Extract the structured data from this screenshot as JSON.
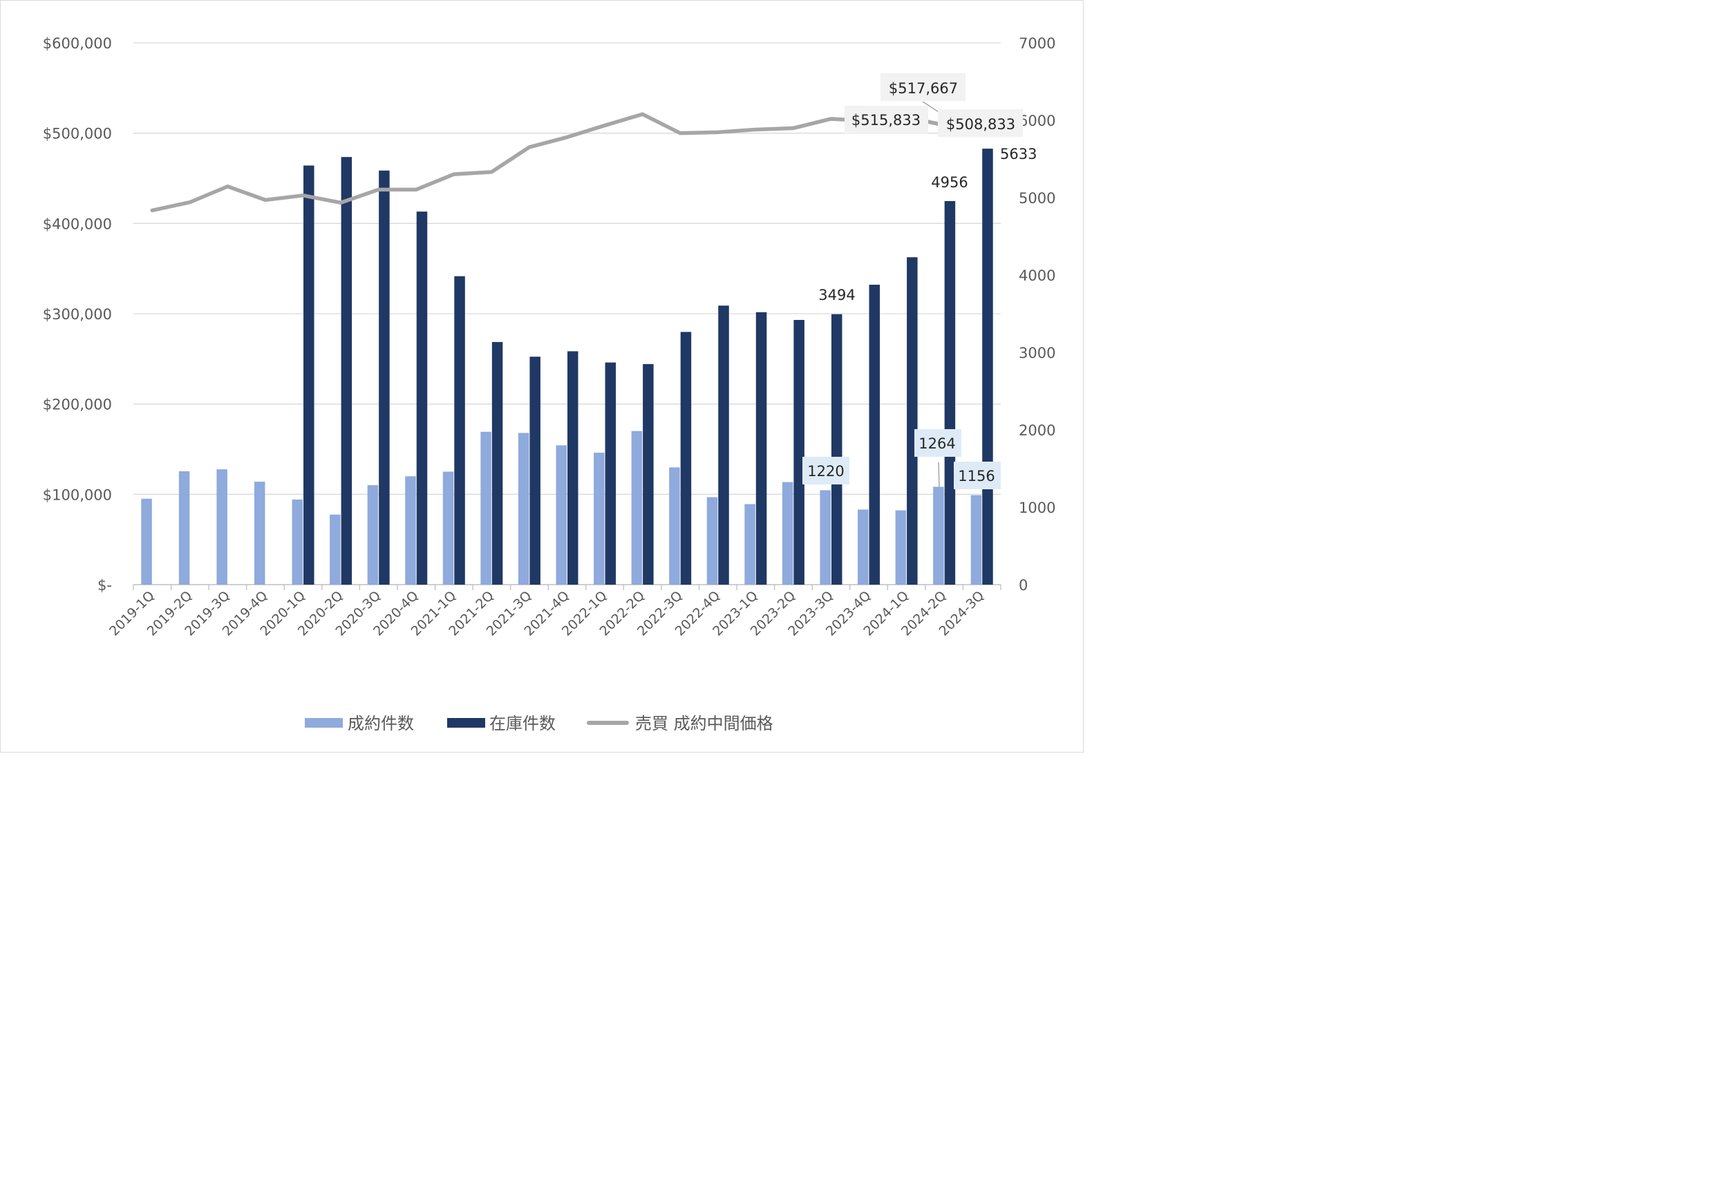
{
  "chart_data": {
    "type": "bar",
    "categories": [
      "2019-1Q",
      "2019-2Q",
      "2019-3Q",
      "2019-4Q",
      "2020-1Q",
      "2020-2Q",
      "2020-3Q",
      "2020-4Q",
      "2021-1Q",
      "2021-2Q",
      "2021-3Q",
      "2021-4Q",
      "2022-1Q",
      "2022-2Q",
      "2022-3Q",
      "2022-4Q",
      "2023-1Q",
      "2023-2Q",
      "2023-3Q",
      "2023-4Q",
      "2024-1Q",
      "2024-2Q",
      "2024-3Q"
    ],
    "series": [
      {
        "name": "成約件数",
        "type": "bar",
        "axis": "right",
        "color": "#8faadc",
        "values": [
          1110,
          1465,
          1490,
          1330,
          1100,
          905,
          1285,
          1400,
          1460,
          1975,
          1960,
          1800,
          1705,
          1985,
          1515,
          1130,
          1040,
          1325,
          1220,
          970,
          960,
          1264,
          1156
        ]
      },
      {
        "name": "在庫件数",
        "type": "bar",
        "axis": "right",
        "color": "#203864",
        "values": [
          null,
          null,
          null,
          null,
          5415,
          5525,
          5350,
          4820,
          3985,
          3135,
          2945,
          3015,
          2870,
          2850,
          3265,
          3605,
          3520,
          3420,
          3494,
          3875,
          4230,
          4956,
          5633
        ]
      },
      {
        "name": "売買 成約中間価格",
        "type": "line",
        "axis": "left",
        "color": "#a6a6a6",
        "values": [
          414500,
          423500,
          441000,
          426000,
          431000,
          423000,
          437500,
          437500,
          454500,
          457000,
          484500,
          495500,
          508500,
          521000,
          500000,
          501000,
          504000,
          505500,
          515833,
          513500,
          517667,
          508833,
          517000
        ]
      }
    ],
    "y_left": {
      "min": 0,
      "max": 600000,
      "ticks": [
        "$-",
        "$100,000",
        "$200,000",
        "$300,000",
        "$400,000",
        "$500,000",
        "$600,000"
      ]
    },
    "y_right": {
      "min": 0,
      "max": 7000,
      "ticks": [
        "0",
        "1000",
        "2000",
        "3000",
        "4000",
        "5000",
        "6000",
        "7000"
      ]
    },
    "data_labels": [
      {
        "series": 1,
        "index": 18,
        "text": "3494",
        "boxed": false
      },
      {
        "series": 1,
        "index": 21,
        "text": "4956",
        "boxed": false
      },
      {
        "series": 1,
        "index": 22,
        "text": "5633",
        "boxed": false
      },
      {
        "series": 0,
        "index": 18,
        "text": "1220",
        "boxed": true
      },
      {
        "series": 0,
        "index": 21,
        "text": "1264",
        "boxed": true
      },
      {
        "series": 0,
        "index": 22,
        "text": "1156",
        "boxed": true
      },
      {
        "series": 2,
        "index": 18,
        "text": "$515,833",
        "boxed": true
      },
      {
        "series": 2,
        "index": 20,
        "text": "$517,667",
        "boxed": true
      },
      {
        "series": 2,
        "index": 21,
        "text": "$508,833",
        "boxed": true
      }
    ],
    "grid": true,
    "legend": "bottom"
  }
}
